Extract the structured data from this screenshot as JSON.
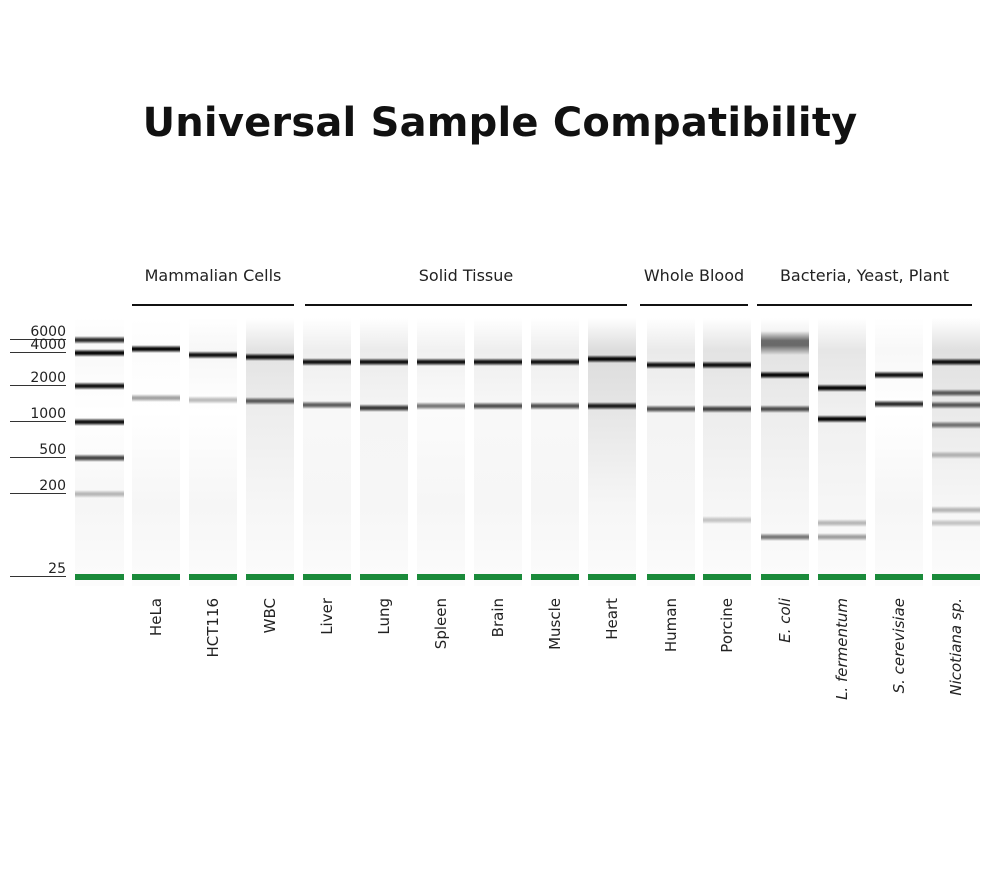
{
  "title": "Universal Sample Compatibility",
  "colors": {
    "band": "#000000",
    "marker": "#1a8a3a",
    "text": "#111111"
  },
  "groups": [
    {
      "label": "Mammalian Cells"
    },
    {
      "label": "Solid Tissue"
    },
    {
      "label": "Whole Blood"
    },
    {
      "label": "Bacteria, Yeast, Plant"
    }
  ],
  "ladder": {
    "marks": [
      {
        "label": "6000",
        "bp": 6000
      },
      {
        "label": "4000",
        "bp": 4000
      },
      {
        "label": "2000",
        "bp": 2000
      },
      {
        "label": "1000",
        "bp": 1000
      },
      {
        "label": "500",
        "bp": 500
      },
      {
        "label": "200",
        "bp": 200
      },
      {
        "label": "25",
        "bp": 25
      }
    ],
    "bands": [
      {
        "bp": 6000,
        "intensity": 0.8
      },
      {
        "bp": 4000,
        "intensity": 0.95
      },
      {
        "bp": 2000,
        "intensity": 0.9
      },
      {
        "bp": 1000,
        "intensity": 0.9
      },
      {
        "bp": 500,
        "intensity": 0.7
      },
      {
        "bp": 200,
        "intensity": 0.25
      }
    ]
  },
  "lanes": [
    {
      "label": "HeLa",
      "italic": false,
      "smear": 0.02,
      "bands": [
        {
          "bp": 4500,
          "intensity": 0.95
        },
        {
          "bp": 1600,
          "intensity": 0.35
        }
      ]
    },
    {
      "label": "HCT116",
      "italic": false,
      "smear": 0.06,
      "bands": [
        {
          "bp": 3800,
          "intensity": 0.9
        },
        {
          "bp": 1530,
          "intensity": 0.25
        }
      ]
    },
    {
      "label": "WBC",
      "italic": false,
      "smear": 0.2,
      "bands": [
        {
          "bp": 3700,
          "intensity": 0.9
        },
        {
          "bp": 1500,
          "intensity": 0.6
        }
      ]
    },
    {
      "label": "Liver",
      "italic": false,
      "smear": 0.12,
      "bands": [
        {
          "bp": 3300,
          "intensity": 0.9
        },
        {
          "bp": 1380,
          "intensity": 0.6
        }
      ]
    },
    {
      "label": "Lung",
      "italic": false,
      "smear": 0.14,
      "bands": [
        {
          "bp": 3300,
          "intensity": 0.9
        },
        {
          "bp": 1310,
          "intensity": 0.75
        }
      ]
    },
    {
      "label": "Spleen",
      "italic": false,
      "smear": 0.1,
      "bands": [
        {
          "bp": 3300,
          "intensity": 0.9
        },
        {
          "bp": 1360,
          "intensity": 0.5
        }
      ]
    },
    {
      "label": "Brain",
      "italic": false,
      "smear": 0.12,
      "bands": [
        {
          "bp": 3300,
          "intensity": 0.9
        },
        {
          "bp": 1360,
          "intensity": 0.65
        }
      ]
    },
    {
      "label": "Muscle",
      "italic": false,
      "smear": 0.12,
      "bands": [
        {
          "bp": 3300,
          "intensity": 0.9
        },
        {
          "bp": 1360,
          "intensity": 0.65
        }
      ]
    },
    {
      "label": "Heart",
      "italic": false,
      "smear": 0.25,
      "bands": [
        {
          "bp": 3500,
          "intensity": 0.95
        },
        {
          "bp": 1360,
          "intensity": 0.85
        }
      ]
    },
    {
      "label": "Human",
      "italic": false,
      "smear": 0.15,
      "bands": [
        {
          "bp": 3100,
          "intensity": 0.9
        },
        {
          "bp": 1280,
          "intensity": 0.65
        }
      ]
    },
    {
      "label": "Porcine",
      "italic": false,
      "smear": 0.2,
      "bands": [
        {
          "bp": 3100,
          "intensity": 0.9
        },
        {
          "bp": 1280,
          "intensity": 0.7
        },
        {
          "bp": 105,
          "intensity": 0.2
        }
      ]
    },
    {
      "label": "E. coli",
      "italic": true,
      "smear": 0.2,
      "bands": [
        {
          "bp": 5500,
          "intensity": 0.55
        },
        {
          "bp": 2500,
          "intensity": 0.95
        },
        {
          "bp": 1280,
          "intensity": 0.65
        },
        {
          "bp": 68,
          "intensity": 0.5
        }
      ]
    },
    {
      "label": "L. fermentum",
      "italic": true,
      "smear": 0.18,
      "bands": [
        {
          "bp": 1930,
          "intensity": 0.95
        },
        {
          "bp": 1060,
          "intensity": 0.95
        },
        {
          "bp": 96,
          "intensity": 0.25
        },
        {
          "bp": 68,
          "intensity": 0.35
        }
      ]
    },
    {
      "label": "S. cerevisiae",
      "italic": true,
      "smear": 0.05,
      "bands": [
        {
          "bp": 2500,
          "intensity": 0.9
        },
        {
          "bp": 1410,
          "intensity": 0.8
        }
      ]
    },
    {
      "label": "Nicotiana sp.",
      "italic": true,
      "smear": 0.22,
      "bands": [
        {
          "bp": 3300,
          "intensity": 0.9
        },
        {
          "bp": 1760,
          "intensity": 0.6
        },
        {
          "bp": 1380,
          "intensity": 0.6
        },
        {
          "bp": 950,
          "intensity": 0.5
        },
        {
          "bp": 530,
          "intensity": 0.25
        },
        {
          "bp": 134,
          "intensity": 0.25
        },
        {
          "bp": 96,
          "intensity": 0.2
        }
      ]
    }
  ]
}
